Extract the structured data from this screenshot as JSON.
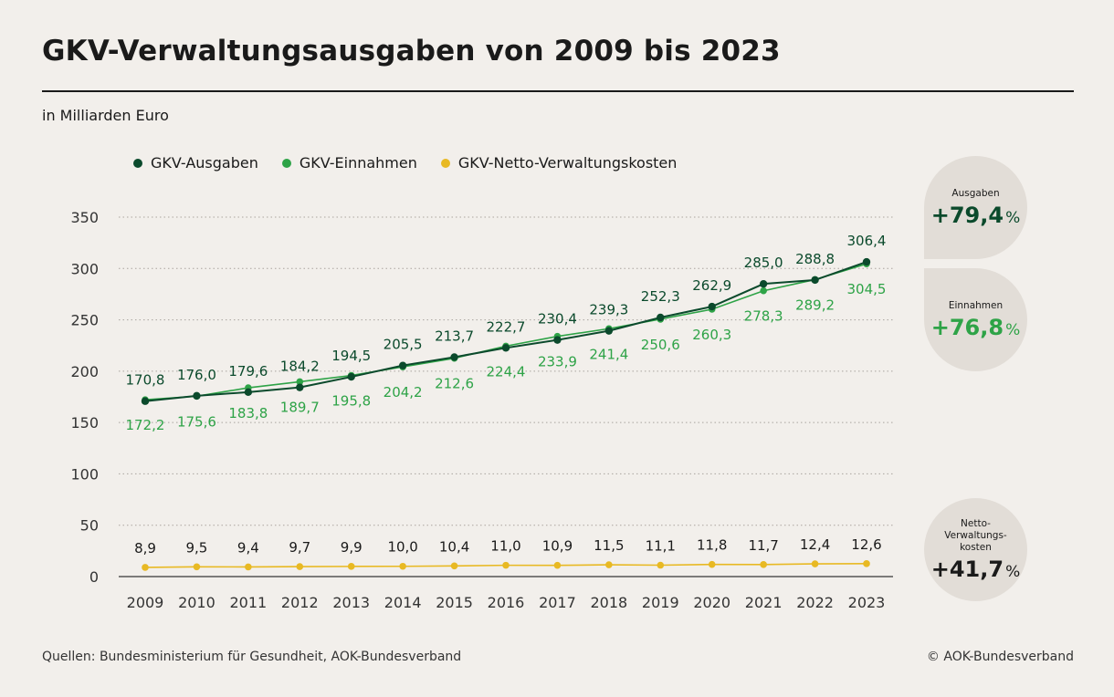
{
  "title": "GKV-Verwaltungsausgaben von 2009 bis 2023",
  "subtitle": "in Milliarden Euro",
  "legend": {
    "ausgaben": "GKV-Ausgaben",
    "einnahmen": "GKV-Einnahmen",
    "netto": "GKV-Netto-Verwaltungskosten"
  },
  "colors": {
    "ausgaben": "#0b4a2c",
    "einnahmen": "#2ea347",
    "netto": "#e8b923",
    "grid": "#a9a49e",
    "axis": "#555555"
  },
  "badges": {
    "ausgaben": {
      "label": "Ausgaben",
      "value": "+79,4",
      "unit": "%"
    },
    "einnahmen": {
      "label": "Einnahmen",
      "value": "+76,8",
      "unit": "%"
    },
    "netto": {
      "label": "Netto-\nVerwaltungs-\nkosten",
      "value": "+41,7",
      "unit": "%"
    }
  },
  "footer": {
    "source": "Quellen: Bundesministerium für Gesundheit, AOK-Bundesverband",
    "copyright": "© AOK-Bundesverband"
  },
  "chart_data": {
    "type": "line",
    "title": "GKV-Verwaltungsausgaben von 2009 bis 2023",
    "ylabel": "in Milliarden Euro",
    "xlabel": "",
    "ylim": [
      0,
      350
    ],
    "yticks": [
      0,
      50,
      100,
      150,
      200,
      250,
      300,
      350
    ],
    "grid": true,
    "categories": [
      "2009",
      "2010",
      "2011",
      "2012",
      "2013",
      "2014",
      "2015",
      "2016",
      "2017",
      "2018",
      "2019",
      "2020",
      "2021",
      "2022",
      "2023"
    ],
    "series": [
      {
        "key": "ausgaben",
        "name": "GKV-Ausgaben",
        "values": [
          170.8,
          176.0,
          179.6,
          184.2,
          194.5,
          205.5,
          213.7,
          222.7,
          230.4,
          239.3,
          252.3,
          262.9,
          285.0,
          288.8,
          306.4
        ],
        "labels": [
          "170,8",
          "176,0",
          "179,6",
          "184,2",
          "194,5",
          "205,5",
          "213,7",
          "222,7",
          "230,4",
          "239,3",
          "252,3",
          "262,9",
          "285,0",
          "288,8",
          "306,4"
        ]
      },
      {
        "key": "einnahmen",
        "name": "GKV-Einnahmen",
        "values": [
          172.2,
          175.6,
          183.8,
          189.7,
          195.8,
          204.2,
          212.6,
          224.4,
          233.9,
          241.4,
          250.6,
          260.3,
          278.3,
          289.2,
          304.5
        ],
        "labels": [
          "172,2",
          "175,6",
          "183,8",
          "189,7",
          "195,8",
          "204,2",
          "212,6",
          "224,4",
          "233,9",
          "241,4",
          "250,6",
          "260,3",
          "278,3",
          "289,2",
          "304,5"
        ]
      },
      {
        "key": "netto",
        "name": "GKV-Netto-Verwaltungskosten",
        "values": [
          8.9,
          9.5,
          9.4,
          9.7,
          9.9,
          10.0,
          10.4,
          11.0,
          10.9,
          11.5,
          11.1,
          11.8,
          11.7,
          12.4,
          12.6
        ],
        "labels": [
          "8,9",
          "9,5",
          "9,4",
          "9,7",
          "9,9",
          "10,0",
          "10,4",
          "11,0",
          "10,9",
          "11,5",
          "11,1",
          "11,8",
          "11,7",
          "12,4",
          "12,6"
        ]
      }
    ]
  }
}
